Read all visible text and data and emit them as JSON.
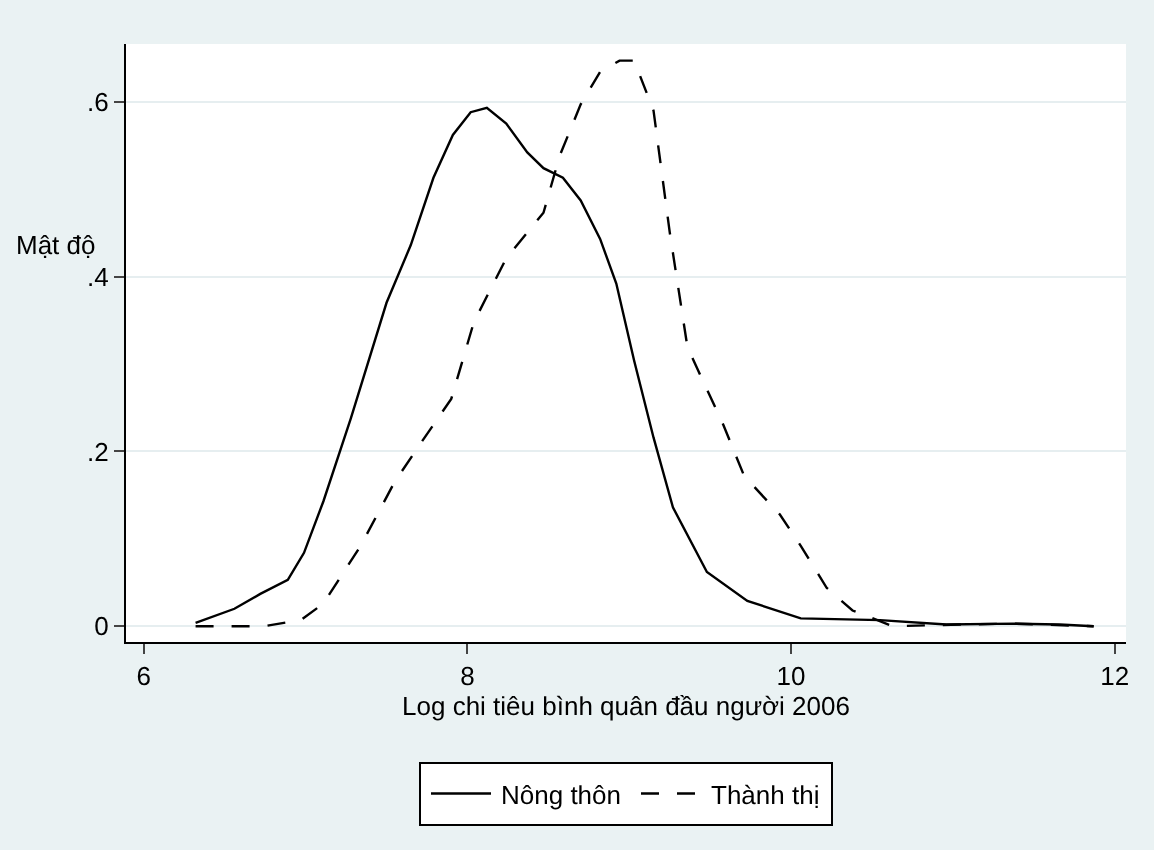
{
  "chart_data": {
    "type": "line",
    "xlabel": "Log chi tiêu bình quân đầu người 2006",
    "ylabel": "Mật độ",
    "xlim": [
      5.89,
      12.07
    ],
    "xticks": [
      6,
      8,
      10,
      12
    ],
    "ylim": [
      -0.018,
      0.666
    ],
    "yticks": [
      {
        "value": 0,
        "label": "0"
      },
      {
        "value": 0.2,
        "label": ".2"
      },
      {
        "value": 0.4,
        "label": ".4"
      },
      {
        "value": 0.6,
        "label": ".6"
      }
    ],
    "grid": "y",
    "legend": "bottom",
    "marker": "none",
    "series": [
      {
        "name": "Nông thôn",
        "color": "#000000",
        "line_style": "solid",
        "x": [
          6.32,
          6.56,
          6.72,
          6.89,
          6.99,
          7.11,
          7.28,
          7.5,
          7.65,
          7.79,
          7.91,
          8.02,
          8.12,
          8.24,
          8.37,
          8.47,
          8.59,
          8.7,
          8.82,
          8.92,
          9.03,
          9.15,
          9.27,
          9.48,
          9.73,
          10.06,
          10.55,
          10.96,
          11.37,
          11.66,
          11.87
        ],
        "values": [
          0.004,
          0.02,
          0.037,
          0.053,
          0.084,
          0.143,
          0.238,
          0.37,
          0.436,
          0.513,
          0.562,
          0.588,
          0.593,
          0.575,
          0.542,
          0.524,
          0.513,
          0.487,
          0.443,
          0.392,
          0.304,
          0.216,
          0.136,
          0.062,
          0.029,
          0.009,
          0.007,
          0.002,
          0.003,
          0.002,
          0
        ]
      },
      {
        "name": "Thành thị",
        "color": "#000000",
        "line_style": "dashed",
        "x": [
          6.32,
          6.74,
          6.97,
          7.11,
          7.34,
          7.55,
          7.71,
          7.9,
          8.04,
          8.24,
          8.47,
          8.57,
          8.7,
          8.82,
          8.94,
          9.03,
          9.15,
          9.25,
          9.36,
          9.58,
          9.71,
          9.93,
          10.06,
          10.22,
          10.38,
          10.63,
          11.04,
          11.37,
          11.87
        ],
        "values": [
          0,
          0,
          0.007,
          0.026,
          0.092,
          0.165,
          0.209,
          0.26,
          0.348,
          0.421,
          0.473,
          0.538,
          0.597,
          0.634,
          0.647,
          0.647,
          0.59,
          0.451,
          0.319,
          0.231,
          0.172,
          0.128,
          0.092,
          0.044,
          0.018,
          0,
          0.002,
          0.003,
          0
        ]
      }
    ]
  }
}
